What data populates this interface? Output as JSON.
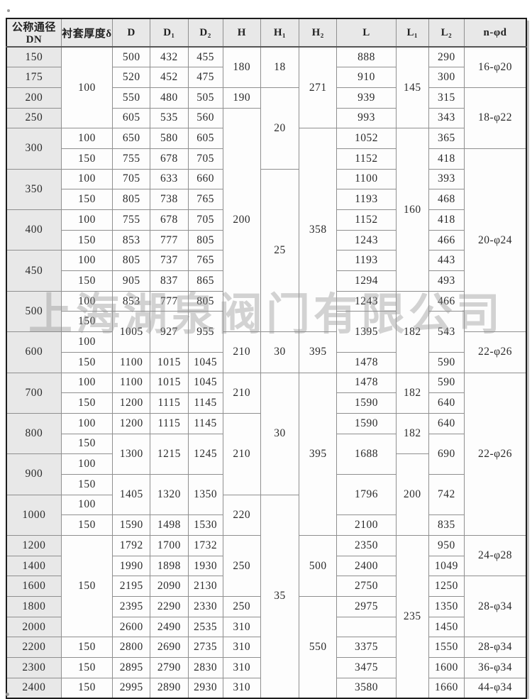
{
  "page": {
    "watermark": "上海湖泉阀门有限公司"
  },
  "table": {
    "headers": [
      "公称通径DN",
      "衬套厚度δ",
      "D",
      "D₁",
      "D₂",
      "H",
      "H₁",
      "H₂",
      "L",
      "L₁",
      "L₂",
      "n-φd"
    ],
    "rows": [
      [
        [
          0,
          "150",
          1
        ],
        [
          1,
          "100",
          4
        ],
        [
          2,
          "500",
          1
        ],
        [
          3,
          "432",
          1
        ],
        [
          4,
          "455",
          1
        ],
        [
          5,
          "180",
          2
        ],
        [
          6,
          "18",
          2
        ],
        [
          7,
          "271",
          4
        ],
        [
          8,
          "888",
          1
        ],
        [
          9,
          "145",
          4
        ],
        [
          10,
          "290",
          1
        ],
        [
          11,
          "16-φ20",
          2
        ]
      ],
      [
        [
          0,
          "175",
          1
        ],
        [
          2,
          "520",
          1
        ],
        [
          3,
          "452",
          1
        ],
        [
          4,
          "475",
          1
        ],
        [
          8,
          "910",
          1
        ],
        [
          10,
          "300",
          1
        ]
      ],
      [
        [
          0,
          "200",
          1
        ],
        [
          2,
          "550",
          1
        ],
        [
          3,
          "480",
          1
        ],
        [
          4,
          "505",
          1
        ],
        [
          5,
          "190",
          1
        ],
        [
          6,
          "20",
          4
        ],
        [
          8,
          "939",
          1
        ],
        [
          10,
          "315",
          1
        ],
        [
          11,
          "18-φ22",
          3
        ]
      ],
      [
        [
          0,
          "250",
          1
        ],
        [
          2,
          "605",
          1
        ],
        [
          3,
          "535",
          1
        ],
        [
          4,
          "560",
          1
        ],
        [
          5,
          "200",
          11
        ],
        [
          8,
          "993",
          1
        ],
        [
          10,
          "343",
          1
        ]
      ],
      [
        [
          0,
          "300",
          2
        ],
        [
          1,
          "100",
          1
        ],
        [
          2,
          "650",
          1
        ],
        [
          3,
          "580",
          1
        ],
        [
          4,
          "605",
          1
        ],
        [
          7,
          "358",
          10
        ],
        [
          8,
          "1052",
          1
        ],
        [
          9,
          "160",
          8
        ],
        [
          10,
          "365",
          1
        ]
      ],
      [
        [
          1,
          "150",
          1
        ],
        [
          2,
          "755",
          1
        ],
        [
          3,
          "678",
          1
        ],
        [
          4,
          "705",
          1
        ],
        [
          8,
          "1152",
          1
        ],
        [
          10,
          "418",
          1
        ],
        [
          11,
          "20-φ24",
          9
        ]
      ],
      [
        [
          0,
          "350",
          2
        ],
        [
          1,
          "100",
          1
        ],
        [
          2,
          "705",
          1
        ],
        [
          3,
          "633",
          1
        ],
        [
          4,
          "660",
          1
        ],
        [
          6,
          "25",
          8
        ],
        [
          8,
          "1100",
          1
        ],
        [
          10,
          "393",
          1
        ]
      ],
      [
        [
          1,
          "150",
          1
        ],
        [
          2,
          "805",
          1
        ],
        [
          3,
          "738",
          1
        ],
        [
          4,
          "765",
          1
        ],
        [
          8,
          "1193",
          1
        ],
        [
          10,
          "468",
          1
        ]
      ],
      [
        [
          0,
          "400",
          2
        ],
        [
          1,
          "100",
          1
        ],
        [
          2,
          "755",
          1
        ],
        [
          3,
          "678",
          1
        ],
        [
          4,
          "705",
          1
        ],
        [
          8,
          "1152",
          1
        ],
        [
          10,
          "418",
          1
        ]
      ],
      [
        [
          1,
          "150",
          1
        ],
        [
          2,
          "853",
          1
        ],
        [
          3,
          "777",
          1
        ],
        [
          4,
          "805",
          1
        ],
        [
          8,
          "1243",
          1
        ],
        [
          10,
          "466",
          1
        ]
      ],
      [
        [
          0,
          "450",
          2
        ],
        [
          1,
          "100",
          1
        ],
        [
          2,
          "805",
          1
        ],
        [
          3,
          "737",
          1
        ],
        [
          4,
          "765",
          1
        ],
        [
          8,
          "1193",
          1
        ],
        [
          10,
          "443",
          1
        ]
      ],
      [
        [
          1,
          "150",
          1
        ],
        [
          2,
          "905",
          1
        ],
        [
          3,
          "837",
          1
        ],
        [
          4,
          "865",
          1
        ],
        [
          8,
          "1294",
          1
        ],
        [
          10,
          "493",
          1
        ]
      ],
      [
        [
          0,
          "500",
          2
        ],
        [
          1,
          "100",
          1
        ],
        [
          2,
          "853",
          1
        ],
        [
          3,
          "777",
          1
        ],
        [
          4,
          "805",
          1
        ],
        [
          8,
          "1243",
          1
        ],
        [
          9,
          "182",
          4
        ],
        [
          10,
          "466",
          1
        ]
      ],
      [
        [
          1,
          "150",
          1
        ],
        [
          2,
          "1005",
          2
        ],
        [
          3,
          "927",
          2
        ],
        [
          4,
          "955",
          2
        ],
        [
          8,
          "1395",
          2
        ],
        [
          10,
          "543",
          2
        ]
      ],
      [
        [
          0,
          "600",
          2
        ],
        [
          1,
          "100",
          1
        ],
        [
          5,
          "210",
          2
        ],
        [
          6,
          "30",
          2
        ],
        [
          7,
          "395",
          2
        ],
        [
          11,
          "22-φ26",
          2
        ]
      ],
      [
        [
          1,
          "150",
          1
        ],
        [
          2,
          "1100",
          1
        ],
        [
          3,
          "1015",
          1
        ],
        [
          4,
          "1045",
          1
        ],
        [
          8,
          "1478",
          1
        ],
        [
          10,
          "590",
          1
        ]
      ],
      [
        [
          0,
          "700",
          2
        ],
        [
          1,
          "100",
          1
        ],
        [
          2,
          "1100",
          1
        ],
        [
          3,
          "1015",
          1
        ],
        [
          4,
          "1045",
          1
        ],
        [
          5,
          "210",
          2
        ],
        [
          6,
          "30",
          6
        ],
        [
          7,
          "395",
          8
        ],
        [
          8,
          "1478",
          1
        ],
        [
          9,
          "182",
          2
        ],
        [
          10,
          "590",
          1
        ],
        [
          11,
          "22-φ26",
          8
        ]
      ],
      [
        [
          1,
          "150",
          1
        ],
        [
          2,
          "1200",
          1
        ],
        [
          3,
          "1115",
          1
        ],
        [
          4,
          "1145",
          1
        ],
        [
          8,
          "1590",
          1
        ],
        [
          10,
          "640",
          1
        ]
      ],
      [
        [
          0,
          "800",
          2
        ],
        [
          1,
          "100",
          1
        ],
        [
          2,
          "1200",
          1
        ],
        [
          3,
          "1115",
          1
        ],
        [
          4,
          "1145",
          1
        ],
        [
          5,
          "210",
          4
        ],
        [
          8,
          "1590",
          1
        ],
        [
          9,
          "182",
          2
        ],
        [
          10,
          "640",
          1
        ]
      ],
      [
        [
          1,
          "150",
          1
        ],
        [
          2,
          "1300",
          2
        ],
        [
          3,
          "1215",
          2
        ],
        [
          4,
          "1245",
          2
        ],
        [
          8,
          "1688",
          2
        ],
        [
          10,
          "690",
          2
        ]
      ],
      [
        [
          0,
          "900",
          2
        ],
        [
          1,
          "100",
          1
        ],
        [
          9,
          "200",
          4
        ]
      ],
      [
        [
          1,
          "150",
          1
        ],
        [
          2,
          "1405",
          2
        ],
        [
          3,
          "1320",
          2
        ],
        [
          4,
          "1350",
          2
        ],
        [
          8,
          "1796",
          2
        ],
        [
          10,
          "742",
          2
        ]
      ],
      [
        [
          0,
          "1000",
          2
        ],
        [
          1,
          "100",
          1
        ],
        [
          5,
          "220",
          2
        ],
        [
          6,
          "35",
          10
        ]
      ],
      [
        [
          1,
          "150",
          1
        ],
        [
          2,
          "1590",
          1
        ],
        [
          3,
          "1498",
          1
        ],
        [
          4,
          "1530",
          1
        ],
        [
          8,
          "2100",
          1
        ],
        [
          10,
          "835",
          1
        ]
      ],
      [
        [
          0,
          "1200",
          1
        ],
        [
          1,
          "150",
          5
        ],
        [
          2,
          "1792",
          1
        ],
        [
          3,
          "1700",
          1
        ],
        [
          4,
          "1732",
          1
        ],
        [
          5,
          "250",
          3
        ],
        [
          7,
          "500",
          3
        ],
        [
          8,
          "2350",
          1
        ],
        [
          9,
          "235",
          8
        ],
        [
          10,
          "950",
          1
        ],
        [
          11,
          "24-φ28",
          2
        ]
      ],
      [
        [
          0,
          "1400",
          1
        ],
        [
          2,
          "1990",
          1
        ],
        [
          3,
          "1898",
          1
        ],
        [
          4,
          "1930",
          1
        ],
        [
          8,
          "2400",
          1
        ],
        [
          10,
          "1049",
          1
        ]
      ],
      [
        [
          0,
          "1600",
          1
        ],
        [
          2,
          "2195",
          1
        ],
        [
          3,
          "2090",
          1
        ],
        [
          4,
          "2130",
          1
        ],
        [
          8,
          "2750",
          1
        ],
        [
          10,
          "1250",
          1
        ],
        [
          11,
          "28-φ34",
          3
        ]
      ],
      [
        [
          0,
          "1800",
          1
        ],
        [
          2,
          "2395",
          1
        ],
        [
          3,
          "2290",
          1
        ],
        [
          4,
          "2330",
          1
        ],
        [
          5,
          "250",
          1
        ],
        [
          7,
          "550",
          5
        ],
        [
          8,
          "2975",
          1
        ],
        [
          10,
          "1350",
          1
        ]
      ],
      [
        [
          0,
          "2000",
          1
        ],
        [
          2,
          "2600",
          1
        ],
        [
          3,
          "2490",
          1
        ],
        [
          4,
          "2535",
          1
        ],
        [
          5,
          "310",
          1
        ],
        [
          8,
          "",
          1
        ],
        [
          10,
          "1450",
          1
        ]
      ],
      [
        [
          0,
          "2200",
          1
        ],
        [
          1,
          "150",
          1
        ],
        [
          2,
          "2800",
          1
        ],
        [
          3,
          "2690",
          1
        ],
        [
          4,
          "2735",
          1
        ],
        [
          5,
          "310",
          1
        ],
        [
          8,
          "3375",
          1
        ],
        [
          10,
          "1550",
          1
        ],
        [
          11,
          "28-φ34",
          1
        ]
      ],
      [
        [
          0,
          "2300",
          1
        ],
        [
          1,
          "150",
          1
        ],
        [
          2,
          "2895",
          1
        ],
        [
          3,
          "2790",
          1
        ],
        [
          4,
          "2830",
          1
        ],
        [
          5,
          "310",
          1
        ],
        [
          8,
          "3475",
          1
        ],
        [
          10,
          "1600",
          1
        ],
        [
          11,
          "36-φ34",
          1
        ]
      ],
      [
        [
          0,
          "2400",
          1
        ],
        [
          1,
          "150",
          1
        ],
        [
          2,
          "2995",
          1
        ],
        [
          3,
          "2890",
          1
        ],
        [
          4,
          "2930",
          1
        ],
        [
          5,
          "310",
          1
        ],
        [
          8,
          "3580",
          1
        ],
        [
          10,
          "1660",
          1
        ],
        [
          11,
          "44-φ34",
          1
        ]
      ]
    ]
  }
}
